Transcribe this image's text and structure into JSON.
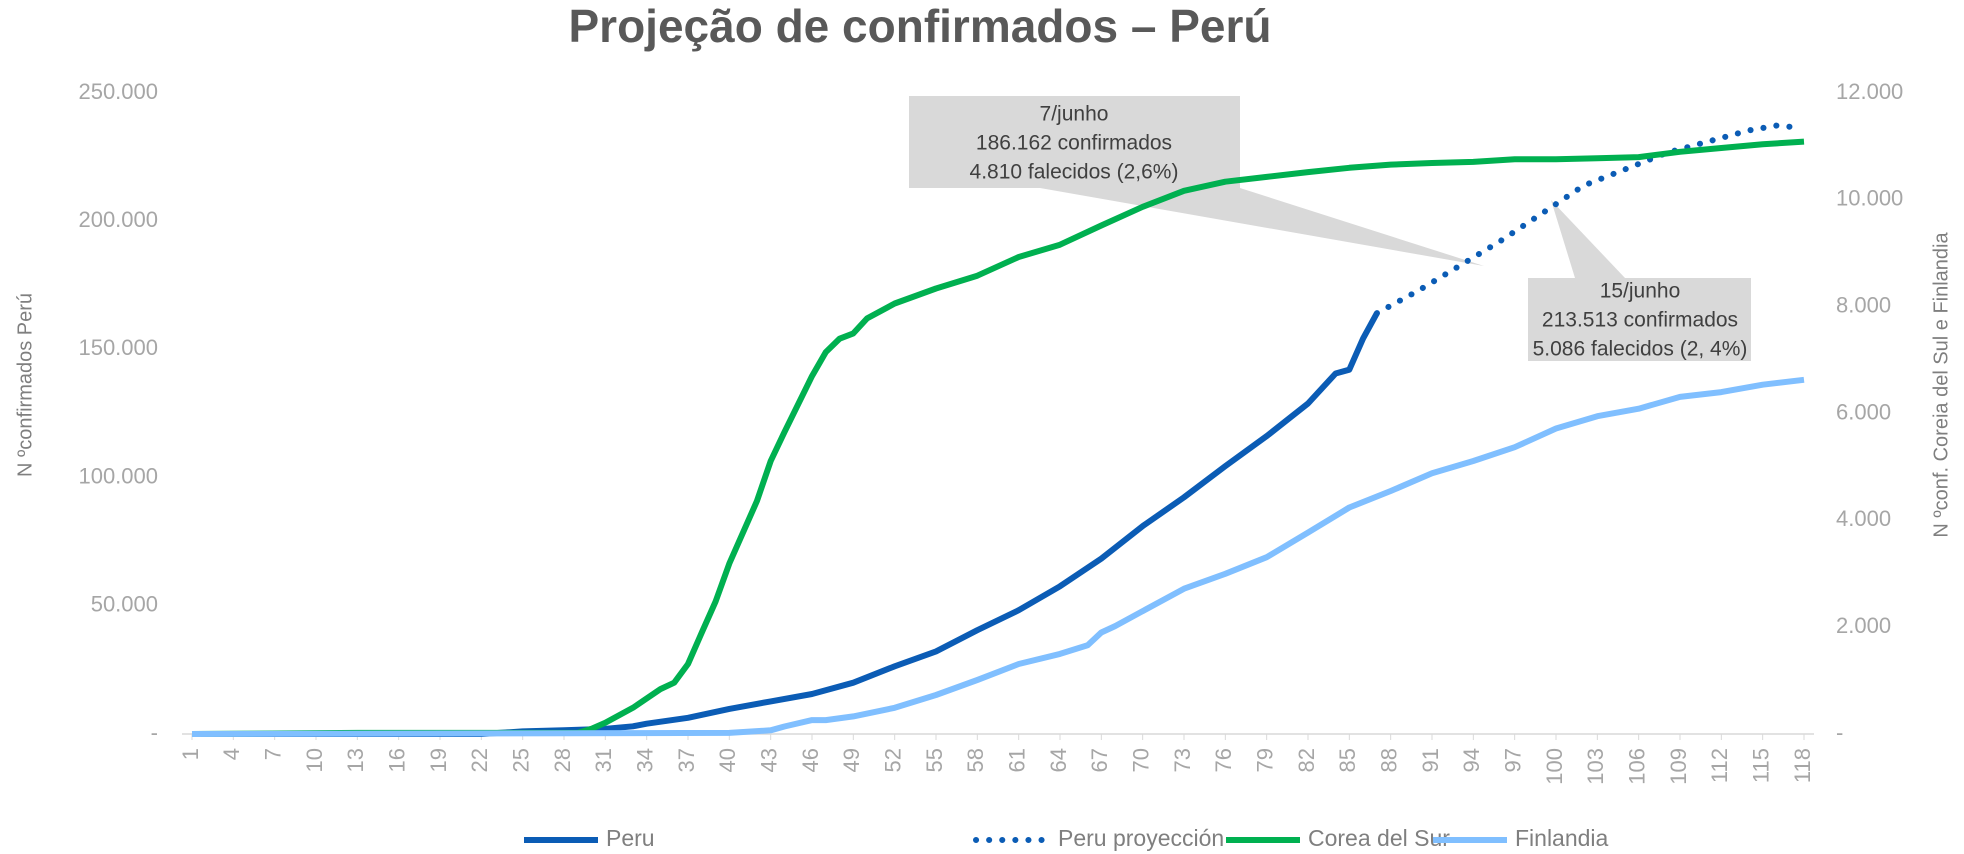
{
  "chart_data": {
    "type": "line",
    "title": "Projeção de confirmados – Perú",
    "ylabel": "N ºconfirmados Perú",
    "y2label": "N ºconf. Coreia del Sul e Finlandia",
    "xlim": [
      1,
      118
    ],
    "xticks": [
      1,
      4,
      7,
      10,
      13,
      16,
      19,
      22,
      25,
      28,
      31,
      34,
      37,
      40,
      43,
      46,
      49,
      52,
      55,
      58,
      61,
      64,
      67,
      70,
      73,
      76,
      79,
      82,
      85,
      88,
      91,
      94,
      97,
      100,
      103,
      106,
      109,
      112,
      115,
      118
    ],
    "ylim": [
      0,
      250000
    ],
    "yticks": [
      {
        "value": 0,
        "label": "-"
      },
      {
        "value": 50000,
        "label": "50.000"
      },
      {
        "value": 100000,
        "label": "100.000"
      },
      {
        "value": 150000,
        "label": "150.000"
      },
      {
        "value": 200000,
        "label": "200.000"
      },
      {
        "value": 250000,
        "label": "250.000"
      }
    ],
    "y2lim": [
      0,
      12000
    ],
    "y2ticks": [
      {
        "value": 0,
        "label": "-"
      },
      {
        "value": 2000,
        "label": "2.000"
      },
      {
        "value": 4000,
        "label": "4.000"
      },
      {
        "value": 6000,
        "label": "6.000"
      },
      {
        "value": 8000,
        "label": "8.000"
      },
      {
        "value": 10000,
        "label": "10.000"
      },
      {
        "value": 12000,
        "label": "12.000"
      }
    ],
    "legend": "bottom",
    "series": [
      {
        "name": "Peru",
        "color": "#0b5cb5",
        "style": "solid",
        "x": [
          1,
          22,
          25,
          28,
          31,
          33,
          34,
          37,
          40,
          43,
          46,
          49,
          52,
          55,
          58,
          61,
          64,
          67,
          70,
          73,
          76,
          79,
          82,
          84,
          85,
          86,
          87
        ],
        "values": [
          0,
          0,
          1000,
          1500,
          2000,
          3000,
          4000,
          6300,
          9800,
          12700,
          15600,
          20000,
          26400,
          32200,
          40500,
          48300,
          57600,
          68400,
          81100,
          92300,
          104500,
          116200,
          128900,
          140600,
          142100,
          154300,
          164100
        ]
      },
      {
        "name": "Peru proyección",
        "color": "#0b5cb5",
        "style": "dotted",
        "x": [
          87,
          90,
          93,
          96,
          99,
          102,
          105,
          108,
          111,
          114,
          116,
          117
        ],
        "values": [
          164100,
          172900,
          182600,
          192400,
          203100,
          213900,
          220200,
          226600,
          231000,
          235400,
          237300,
          236800
        ]
      },
      {
        "name": "Corea del Sur",
        "color": "#00b050",
        "style": "solid",
        "axis": "y2",
        "x": [
          1,
          13,
          29,
          30,
          31,
          33,
          35,
          36,
          37,
          38,
          39,
          40,
          42,
          43,
          44,
          46,
          47,
          48,
          49,
          50,
          52,
          55,
          58,
          61,
          64,
          67,
          70,
          73,
          76,
          79,
          82,
          85,
          88,
          91,
          94,
          97,
          100,
          103,
          106,
          109,
          112,
          115,
          118
        ],
        "values": [
          0,
          20,
          20,
          100,
          210,
          490,
          840,
          960,
          1310,
          1900,
          2480,
          3190,
          4360,
          5110,
          5650,
          6700,
          7150,
          7400,
          7500,
          7780,
          8060,
          8340,
          8580,
          8930,
          9160,
          9520,
          9870,
          10170,
          10340,
          10430,
          10520,
          10600,
          10660,
          10690,
          10710,
          10760,
          10760,
          10780,
          10800,
          10900,
          10970,
          11040,
          11090
        ]
      },
      {
        "name": "Finlandia",
        "color": "#80bfff",
        "style": "solid",
        "axis": "y2",
        "x": [
          1,
          40,
          43,
          44,
          46,
          47,
          49,
          52,
          55,
          58,
          61,
          64,
          66,
          67,
          68,
          70,
          73,
          76,
          79,
          82,
          85,
          88,
          91,
          94,
          97,
          100,
          103,
          106,
          109,
          112,
          115,
          118
        ],
        "values": [
          0,
          20,
          70,
          140,
          260,
          260,
          330,
          490,
          730,
          1010,
          1310,
          1500,
          1660,
          1900,
          2020,
          2300,
          2720,
          3000,
          3310,
          3770,
          4240,
          4550,
          4880,
          5110,
          5370,
          5720,
          5950,
          6090,
          6310,
          6400,
          6540,
          6630
        ]
      }
    ],
    "annotations": [
      {
        "lines": [
          "7/junho",
          "186.162 confirmados",
          "4.810 falecidos (2,6%)"
        ]
      },
      {
        "lines": [
          "15/junho",
          "213.513 confirmados",
          "5.086 falecidos (2, 4%)"
        ]
      }
    ]
  }
}
